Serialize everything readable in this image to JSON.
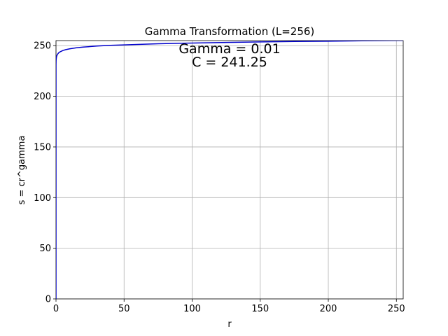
{
  "chart_data": {
    "type": "line",
    "title": "Gamma Transformation (L=256)",
    "xlabel": "r",
    "ylabel": "s = cr^gamma",
    "xlim": [
      0,
      255
    ],
    "ylim": [
      0,
      255
    ],
    "xticks": [
      0,
      50,
      100,
      150,
      200,
      250
    ],
    "yticks": [
      0,
      50,
      100,
      150,
      200,
      250
    ],
    "grid": true,
    "annotations": [
      "Gamma = 0.01",
      "C = 241.25"
    ],
    "series": [
      {
        "color": "#0000cc",
        "gamma": 0.01,
        "c": 241.25,
        "x": [
          0,
          0.01,
          0.05,
          0.1,
          0.25,
          0.5,
          1,
          2,
          3,
          5,
          7,
          10,
          15,
          20,
          30,
          40,
          50,
          75,
          100,
          125,
          150,
          175,
          200,
          225,
          255
        ],
        "y": [
          0,
          230.6,
          234.3,
          235.8,
          237.9,
          239.6,
          241.3,
          243.0,
          243.9,
          245.2,
          246.0,
          246.9,
          247.9,
          248.6,
          249.6,
          250.3,
          250.8,
          251.9,
          252.6,
          253.2,
          253.7,
          254.1,
          254.4,
          254.8,
          255.2
        ]
      }
    ]
  }
}
